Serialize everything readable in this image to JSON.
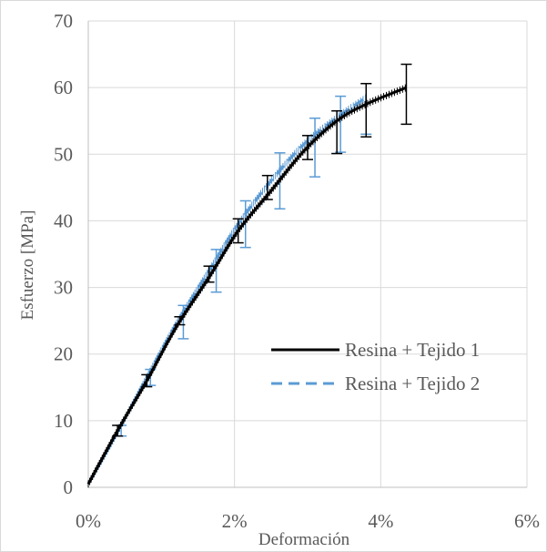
{
  "chart_data": {
    "type": "line",
    "title": "",
    "xlabel": "Deformación",
    "ylabel": "Esfuerzo  [MPa]",
    "xlim": [
      0,
      0.06
    ],
    "ylim": [
      0,
      70
    ],
    "x_ticks": [
      {
        "value": 0,
        "label": "0%"
      },
      {
        "value": 0.02,
        "label": "2%"
      },
      {
        "value": 0.04,
        "label": "4%"
      },
      {
        "value": 0.06,
        "label": "6%"
      }
    ],
    "y_ticks": [
      {
        "value": 0,
        "label": "0"
      },
      {
        "value": 10,
        "label": "10"
      },
      {
        "value": 20,
        "label": "20"
      },
      {
        "value": 30,
        "label": "30"
      },
      {
        "value": 40,
        "label": "40"
      },
      {
        "value": 50,
        "label": "50"
      },
      {
        "value": 60,
        "label": "60"
      },
      {
        "value": 70,
        "label": "70"
      }
    ],
    "grid": true,
    "legend_position": "right",
    "series": [
      {
        "name": "Resina + Tejido 1",
        "color": "#000000",
        "style": "solid",
        "x": [
          0,
          0.004,
          0.008,
          0.012,
          0.0165,
          0.0205,
          0.025,
          0.0295,
          0.034,
          0.038,
          0.0435
        ],
        "y": [
          0.5,
          8.5,
          16,
          24,
          31.5,
          38.5,
          44.5,
          50.5,
          55,
          57.5,
          60
        ],
        "error_bars": [
          {
            "x": 0.004,
            "y": 8.5,
            "err": 0.8
          },
          {
            "x": 0.008,
            "y": 16,
            "err": 0.9
          },
          {
            "x": 0.0125,
            "y": 25,
            "err": 0.6
          },
          {
            "x": 0.0165,
            "y": 32,
            "err": 1.2
          },
          {
            "x": 0.0205,
            "y": 38.5,
            "err": 1.8
          },
          {
            "x": 0.0245,
            "y": 45,
            "err": 1.8
          },
          {
            "x": 0.03,
            "y": 51,
            "err": 1.8
          },
          {
            "x": 0.034,
            "y": 53.3,
            "err": 3.2
          },
          {
            "x": 0.038,
            "y": 56.6,
            "err": 4.0
          },
          {
            "x": 0.0435,
            "y": 59,
            "err": 4.5
          }
        ]
      },
      {
        "name": "Resina + Tejido 2",
        "color": "#5b9bd5",
        "style": "dashed",
        "x": [
          0,
          0.004,
          0.008,
          0.012,
          0.0165,
          0.0205,
          0.025,
          0.0295,
          0.034,
          0.038
        ],
        "y": [
          0.5,
          8.3,
          16.5,
          24.5,
          32.5,
          39.5,
          46,
          51.5,
          55.5,
          58.5
        ],
        "error_bars": [
          {
            "x": 0.0045,
            "y": 8.5,
            "err": 0.8
          },
          {
            "x": 0.0085,
            "y": 16.5,
            "err": 1.2
          },
          {
            "x": 0.013,
            "y": 24.8,
            "err": 2.5
          },
          {
            "x": 0.0175,
            "y": 32.5,
            "err": 3.2
          },
          {
            "x": 0.0215,
            "y": 39.5,
            "err": 3.5
          },
          {
            "x": 0.0262,
            "y": 46,
            "err": 4.2
          },
          {
            "x": 0.031,
            "y": 51,
            "err": 4.4
          },
          {
            "x": 0.0345,
            "y": 54.5,
            "err": 4.2
          },
          {
            "x": 0.038,
            "y": 56.8,
            "err": 3.8
          }
        ]
      }
    ]
  }
}
